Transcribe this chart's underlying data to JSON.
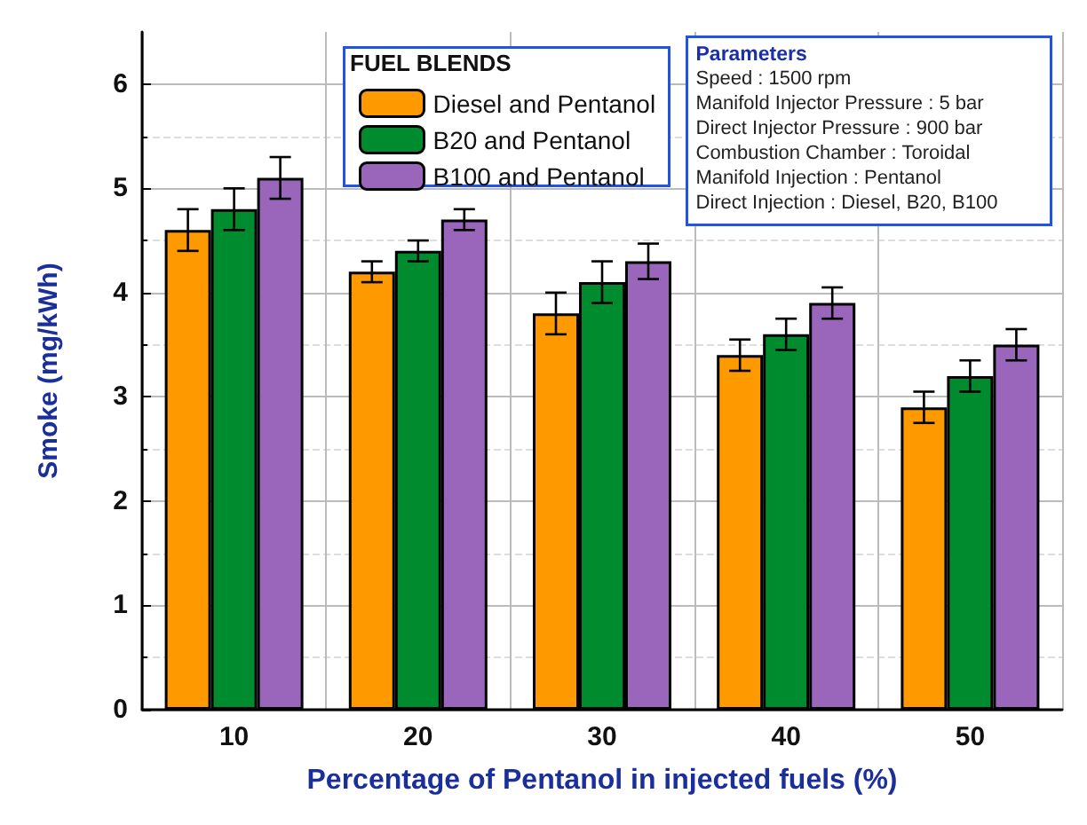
{
  "chart_data": {
    "type": "bar",
    "xlabel": "Percentage of Pentanol in injected fuels (%)",
    "ylabel": "Smoke (mg/kWh)",
    "legend_title": "FUEL BLENDS",
    "legend": "top",
    "grid": true,
    "categories": [
      "10",
      "20",
      "30",
      "40",
      "50"
    ],
    "series": [
      {
        "name": "Diesel and Pentanol",
        "color": "#ff9900",
        "values": [
          4.6,
          4.2,
          3.8,
          3.4,
          2.9
        ],
        "errors": [
          0.2,
          0.1,
          0.2,
          0.15,
          0.15
        ]
      },
      {
        "name": "B20 and Pentanol",
        "color": "#008c2e",
        "values": [
          4.8,
          4.4,
          4.1,
          3.6,
          3.2
        ],
        "errors": [
          0.2,
          0.1,
          0.2,
          0.15,
          0.15
        ]
      },
      {
        "name": "B100 and Pentanol",
        "color": "#9966bb",
        "values": [
          5.1,
          4.7,
          4.3,
          3.9,
          3.5
        ],
        "errors": [
          0.2,
          0.1,
          0.17,
          0.15,
          0.15
        ]
      }
    ],
    "ylim": [
      0,
      6.5
    ],
    "yticks": [
      0,
      1,
      2,
      3,
      4,
      5,
      6
    ],
    "annotations": [
      "Parameters",
      "Speed : 1500 rpm",
      "Manifold Injector Pressure : 5 bar",
      "Direct Injector Pressure : 900 bar",
      "Combustion Chamber : Toroidal",
      "Manifold Injection : Pentanol",
      "Direct Injection : Diesel, B20, B100"
    ]
  }
}
